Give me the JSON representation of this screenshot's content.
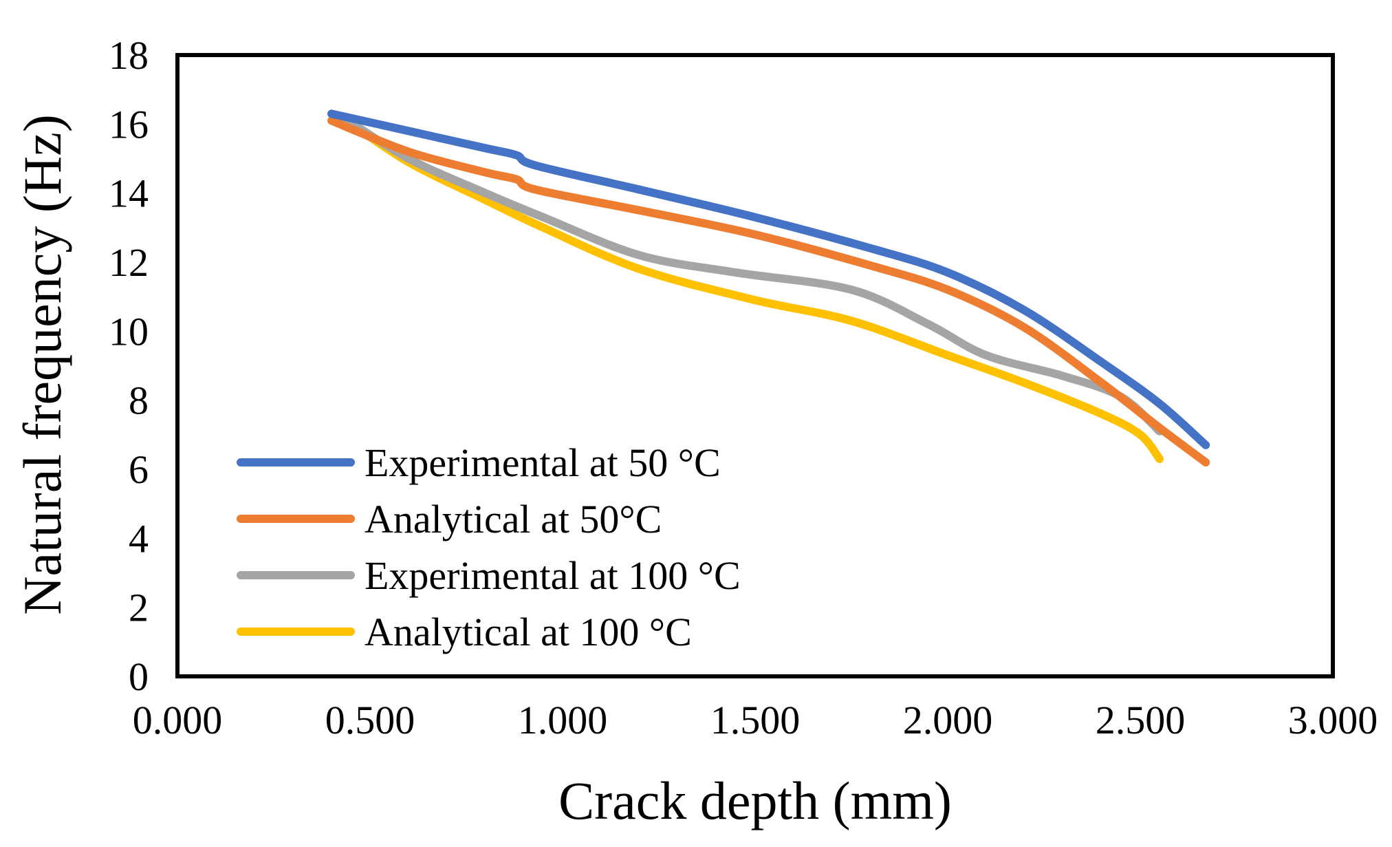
{
  "chart_data": {
    "type": "line",
    "title": "",
    "xlabel": "Crack depth (mm)",
    "ylabel": "Natural frequency (Hz)",
    "xlim": [
      0,
      3
    ],
    "ylim": [
      0,
      18
    ],
    "x_ticks": [
      "0.000",
      "0.500",
      "1.000",
      "1.500",
      "2.000",
      "2.500",
      "3.000"
    ],
    "y_ticks": [
      "0",
      "2",
      "4",
      "6",
      "8",
      "10",
      "12",
      "14",
      "16",
      "18"
    ],
    "grid": false,
    "legend_position": "bottom-left",
    "series": [
      {
        "name": "Experimental at 50 °C",
        "color": "#4472C4",
        "x": [
          0.4,
          0.6,
          0.8,
          0.88,
          0.93,
          1.2,
          1.5,
          1.8,
          2.0,
          2.2,
          2.4,
          2.55,
          2.67
        ],
        "y": [
          16.3,
          15.8,
          15.3,
          15.1,
          14.8,
          14.1,
          13.3,
          12.4,
          11.7,
          10.6,
          9.1,
          7.9,
          6.7
        ]
      },
      {
        "name": "Analytical at 50°C",
        "color": "#ED7D31",
        "x": [
          0.4,
          0.6,
          0.8,
          0.88,
          0.93,
          1.2,
          1.5,
          1.8,
          2.0,
          2.2,
          2.4,
          2.55,
          2.67
        ],
        "y": [
          16.1,
          15.2,
          14.6,
          14.4,
          14.1,
          13.5,
          12.8,
          11.9,
          11.2,
          10.1,
          8.5,
          7.2,
          6.2
        ]
      },
      {
        "name": "Experimental at 100 °C",
        "color": "#A5A5A5",
        "x": [
          0.43,
          0.6,
          0.8,
          0.95,
          1.2,
          1.45,
          1.75,
          1.95,
          2.1,
          2.3,
          2.45,
          2.55
        ],
        "y": [
          16.2,
          15.0,
          14.0,
          13.3,
          12.2,
          11.7,
          11.2,
          10.2,
          9.3,
          8.7,
          8.1,
          7.1
        ]
      },
      {
        "name": "Analytical at 100 °C",
        "color": "#FFC000",
        "x": [
          0.44,
          0.6,
          0.8,
          0.95,
          1.2,
          1.5,
          1.75,
          2.0,
          2.2,
          2.4,
          2.5,
          2.55
        ],
        "y": [
          16.1,
          14.9,
          13.8,
          13.0,
          11.8,
          10.9,
          10.3,
          9.3,
          8.5,
          7.6,
          7.0,
          6.3
        ]
      }
    ]
  }
}
